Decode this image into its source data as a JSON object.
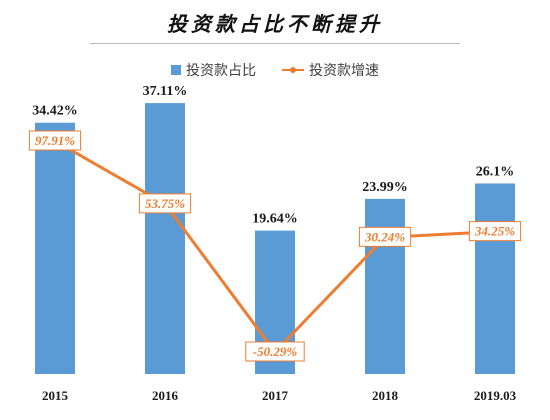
{
  "chart_data": {
    "type": "bar",
    "title": "投资款占比不断提升",
    "categories": [
      "2015",
      "2016",
      "2017",
      "2018",
      "2019.03"
    ],
    "series": [
      {
        "name": "投资款占比",
        "type": "bar",
        "values": [
          34.42,
          37.11,
          19.64,
          23.99,
          26.1
        ],
        "labels": [
          "34.42%",
          "37.11%",
          "19.64%",
          "23.99%",
          "26.1%"
        ],
        "color": "#5b9bd5"
      },
      {
        "name": "投资款增速",
        "type": "line",
        "values": [
          97.91,
          53.75,
          -50.29,
          30.24,
          34.25
        ],
        "labels": [
          "97.91%",
          "53.75%",
          "-50.29%",
          "30.24%",
          "34.25%"
        ],
        "color": "#ed7d31"
      }
    ],
    "legend": "top-center",
    "grid": false,
    "y_axes": "hidden"
  }
}
